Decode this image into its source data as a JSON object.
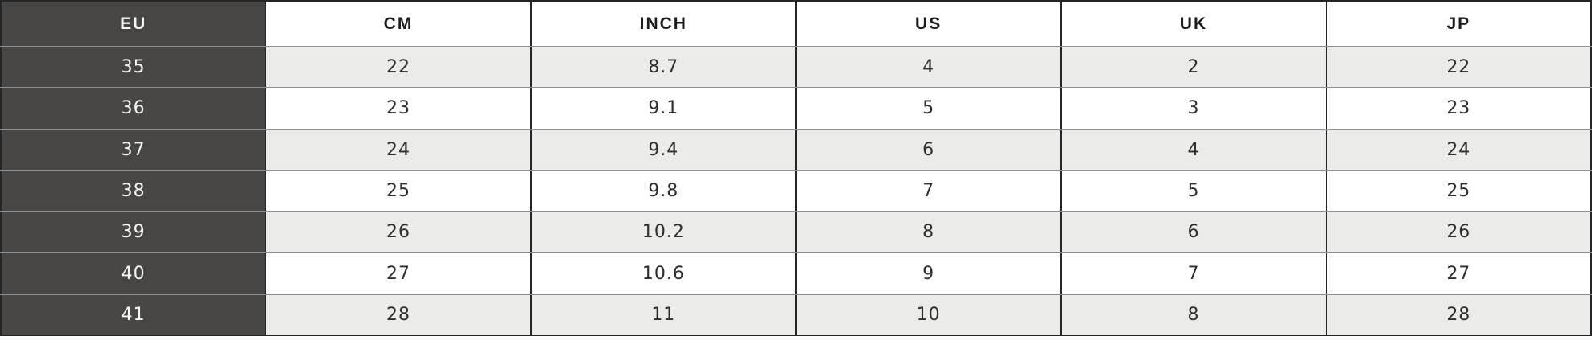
{
  "chart_data": {
    "type": "table",
    "columns": [
      "EU",
      "CM",
      "INCH",
      "US",
      "UK",
      "JP"
    ],
    "rows": [
      [
        35,
        22,
        8.7,
        4,
        2,
        22
      ],
      [
        36,
        23,
        9.1,
        5,
        3,
        23
      ],
      [
        37,
        24,
        9.4,
        6,
        4,
        24
      ],
      [
        38,
        25,
        9.8,
        7,
        5,
        25
      ],
      [
        39,
        26,
        10.2,
        8,
        6,
        26
      ],
      [
        40,
        27,
        10.6,
        9,
        7,
        27
      ],
      [
        41,
        28,
        11,
        10,
        8,
        28
      ]
    ],
    "layout": {
      "first_column_style": "dark",
      "striping": "first-data-row-gray-alternating",
      "grid": true
    }
  },
  "colors": {
    "dark_col_bg": "#474645",
    "dark_col_text": "#f6f6f4",
    "stripe_bg": "#ebebea",
    "white_bg": "#ffffff",
    "header_text": "#1c1c1a",
    "cell_text": "#2d2d2b",
    "v_border": "#252525",
    "h_border": "#8f8f8f"
  }
}
